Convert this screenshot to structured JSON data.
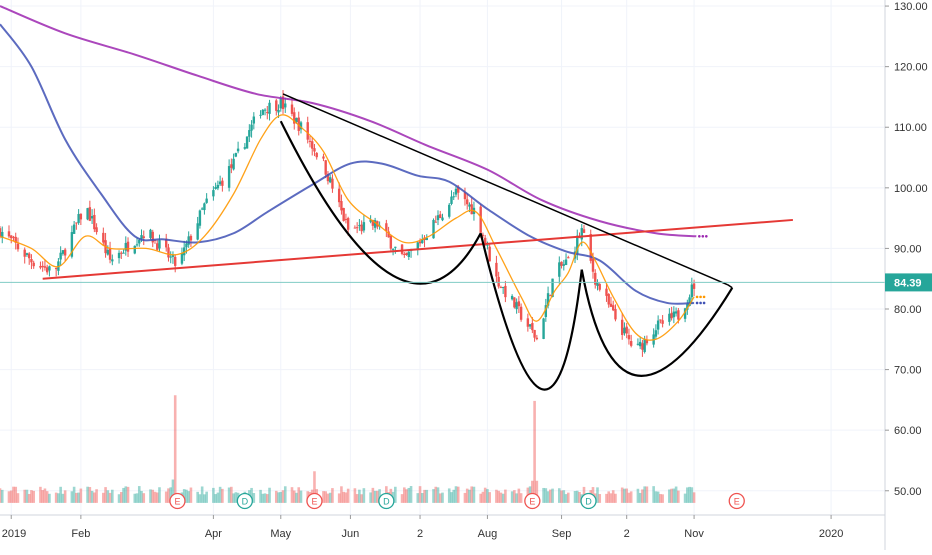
{
  "colors": {
    "up": "#26a69a",
    "down": "#ef5350",
    "ma_long": "#9c27b0",
    "ma_mid": "#3f51b5",
    "ma_short": "#ff9800",
    "trend_red": "#e53935",
    "drawing": "#000000",
    "price_line": "#80cbc4",
    "price_badge": "#26a69a",
    "axis_text": "#333333",
    "grid": "#f0f3fa"
  },
  "chart_data": {
    "type": "candlestick",
    "title": "",
    "ylim": [
      46,
      131
    ],
    "y_ticks": [
      {
        "value": 130,
        "label": "130.00"
      },
      {
        "value": 120,
        "label": "120.00"
      },
      {
        "value": 110,
        "label": "110.00"
      },
      {
        "value": 100,
        "label": "100.00"
      },
      {
        "value": 90,
        "label": "90.00"
      },
      {
        "value": 80,
        "label": "80.00"
      },
      {
        "value": 70,
        "label": "70.00"
      },
      {
        "value": 60,
        "label": "60.00"
      },
      {
        "value": 50,
        "label": "50.00"
      }
    ],
    "x_range": [
      "2018-12-27",
      "2020-01-25"
    ],
    "x_ticks": [
      {
        "date": "2019-01-01",
        "label": "2019"
      },
      {
        "date": "2019-02-01",
        "label": "Feb"
      },
      {
        "date": "2019-04-01",
        "label": "Apr"
      },
      {
        "date": "2019-05-01",
        "label": "May"
      },
      {
        "date": "2019-06-01",
        "label": "Jun"
      },
      {
        "date": "2019-07-02",
        "label": "2"
      },
      {
        "date": "2019-08-01",
        "label": "Aug"
      },
      {
        "date": "2019-09-03",
        "label": "Sep"
      },
      {
        "date": "2019-10-02",
        "label": "2"
      },
      {
        "date": "2019-11-01",
        "label": "Nov"
      },
      {
        "date": "2020-01-01",
        "label": "2020"
      }
    ],
    "last_price": {
      "value": 84.39,
      "label": "84.39"
    },
    "price_path": [
      [
        "2018-12-27",
        93
      ],
      [
        "2019-01-10",
        88
      ],
      [
        "2019-01-20",
        86
      ],
      [
        "2019-02-03",
        97
      ],
      [
        "2019-02-14",
        88
      ],
      [
        "2019-03-02",
        93
      ],
      [
        "2019-03-16",
        87
      ],
      [
        "2019-03-28",
        97
      ],
      [
        "2019-04-10",
        104
      ],
      [
        "2019-04-22",
        113
      ],
      [
        "2019-05-01",
        114
      ],
      [
        "2019-05-10",
        110
      ],
      [
        "2019-05-20",
        104
      ],
      [
        "2019-05-31",
        93
      ],
      [
        "2019-06-13",
        94
      ],
      [
        "2019-06-25",
        88
      ],
      [
        "2019-07-06",
        93
      ],
      [
        "2019-07-18",
        99
      ],
      [
        "2019-07-27",
        96
      ],
      [
        "2019-08-05",
        85
      ],
      [
        "2019-08-16",
        79
      ],
      [
        "2019-08-23",
        75
      ],
      [
        "2019-08-31",
        86
      ],
      [
        "2019-09-06",
        88
      ],
      [
        "2019-09-12",
        93
      ],
      [
        "2019-09-18",
        85
      ],
      [
        "2019-09-26",
        79
      ],
      [
        "2019-10-06",
        73
      ],
      [
        "2019-10-15",
        77
      ],
      [
        "2019-10-25",
        79
      ],
      [
        "2019-11-01",
        84
      ]
    ],
    "volume_spikes": [
      {
        "date": "2019-03-15",
        "height": 0.95
      },
      {
        "date": "2019-05-16",
        "height": 0.45
      },
      {
        "date": "2019-08-22",
        "height": 0.9
      }
    ],
    "series": [
      {
        "key": "ma_long",
        "color": "#9c27b0",
        "points": [
          [
            "2018-12-27",
            130
          ],
          [
            "2019-01-25",
            125.5
          ],
          [
            "2019-02-25",
            122
          ],
          [
            "2019-03-25",
            118.5
          ],
          [
            "2019-04-20",
            115.5
          ],
          [
            "2019-05-15",
            114
          ],
          [
            "2019-06-10",
            111
          ],
          [
            "2019-07-05",
            107
          ],
          [
            "2019-08-01",
            103
          ],
          [
            "2019-08-25",
            98
          ],
          [
            "2019-09-20",
            94.5
          ],
          [
            "2019-10-15",
            92.5
          ],
          [
            "2019-11-02",
            92
          ]
        ],
        "dots_to": "2019-11-08"
      },
      {
        "key": "ma_mid",
        "color": "#3f51b5",
        "points": [
          [
            "2018-12-27",
            127
          ],
          [
            "2019-01-10",
            120
          ],
          [
            "2019-01-25",
            108
          ],
          [
            "2019-02-10",
            99
          ],
          [
            "2019-02-25",
            92
          ],
          [
            "2019-03-10",
            91.5
          ],
          [
            "2019-03-25",
            91
          ],
          [
            "2019-04-10",
            92.5
          ],
          [
            "2019-04-25",
            96
          ],
          [
            "2019-05-15",
            100.5
          ],
          [
            "2019-06-01",
            104
          ],
          [
            "2019-06-15",
            104
          ],
          [
            "2019-07-01",
            102
          ],
          [
            "2019-07-15",
            101
          ],
          [
            "2019-08-01",
            96.5
          ],
          [
            "2019-08-20",
            92
          ],
          [
            "2019-09-05",
            89.5
          ],
          [
            "2019-09-20",
            88
          ],
          [
            "2019-10-06",
            83
          ],
          [
            "2019-10-20",
            81
          ],
          [
            "2019-11-01",
            81
          ]
        ],
        "dots_to": "2019-11-07"
      },
      {
        "key": "ma_short",
        "color": "#ff9800",
        "points": [
          [
            "2018-12-27",
            92
          ],
          [
            "2019-01-10",
            90
          ],
          [
            "2019-01-22",
            87
          ],
          [
            "2019-02-03",
            92
          ],
          [
            "2019-02-14",
            90
          ],
          [
            "2019-03-02",
            90
          ],
          [
            "2019-03-16",
            89
          ],
          [
            "2019-03-28",
            92
          ],
          [
            "2019-04-10",
            99
          ],
          [
            "2019-04-22",
            108
          ],
          [
            "2019-05-01",
            112
          ],
          [
            "2019-05-10",
            110
          ],
          [
            "2019-05-20",
            106
          ],
          [
            "2019-05-31",
            98
          ],
          [
            "2019-06-13",
            94
          ],
          [
            "2019-06-25",
            91
          ],
          [
            "2019-07-06",
            92
          ],
          [
            "2019-07-18",
            95
          ],
          [
            "2019-07-27",
            96
          ],
          [
            "2019-08-05",
            90
          ],
          [
            "2019-08-16",
            82
          ],
          [
            "2019-08-23",
            78
          ],
          [
            "2019-08-31",
            83
          ],
          [
            "2019-09-06",
            86
          ],
          [
            "2019-09-12",
            91
          ],
          [
            "2019-09-18",
            88
          ],
          [
            "2019-09-26",
            82
          ],
          [
            "2019-10-06",
            76
          ],
          [
            "2019-10-15",
            75
          ],
          [
            "2019-10-25",
            78
          ],
          [
            "2019-11-01",
            82
          ]
        ],
        "dots_to": "2019-11-06"
      }
    ],
    "trendlines": [
      {
        "key": "red-support",
        "color": "#e53935",
        "from": [
          "2019-01-15",
          85
        ],
        "to": [
          "2019-12-15",
          94.7
        ],
        "width": 2
      },
      {
        "key": "black-resistance",
        "color": "#000000",
        "from": [
          "2019-05-02",
          115.5
        ],
        "to": [
          "2019-11-16",
          84
        ],
        "width": 1.5
      }
    ],
    "pattern_curves": [
      {
        "key": "cup-1-curve",
        "points": [
          [
            "2019-05-01",
            111
          ],
          [
            "2019-06-20",
            85.5
          ],
          [
            "2019-07-29",
            92.5
          ]
        ]
      },
      {
        "key": "cup-2-curve",
        "points": [
          [
            "2019-07-29",
            92.5
          ],
          [
            "2019-08-25",
            66.8
          ],
          [
            "2019-09-12",
            86.5
          ]
        ]
      },
      {
        "key": "cup-3-curve",
        "points": [
          [
            "2019-09-12",
            86.5
          ],
          [
            "2019-10-07",
            69
          ],
          [
            "2019-11-18",
            83.5
          ]
        ]
      }
    ],
    "events": [
      {
        "type": "E",
        "date": "2019-03-16"
      },
      {
        "type": "D",
        "date": "2019-04-15"
      },
      {
        "type": "E",
        "date": "2019-05-16"
      },
      {
        "type": "D",
        "date": "2019-06-17"
      },
      {
        "type": "E",
        "date": "2019-08-21"
      },
      {
        "type": "D",
        "date": "2019-09-15"
      },
      {
        "type": "E",
        "date": "2019-11-20"
      }
    ]
  }
}
